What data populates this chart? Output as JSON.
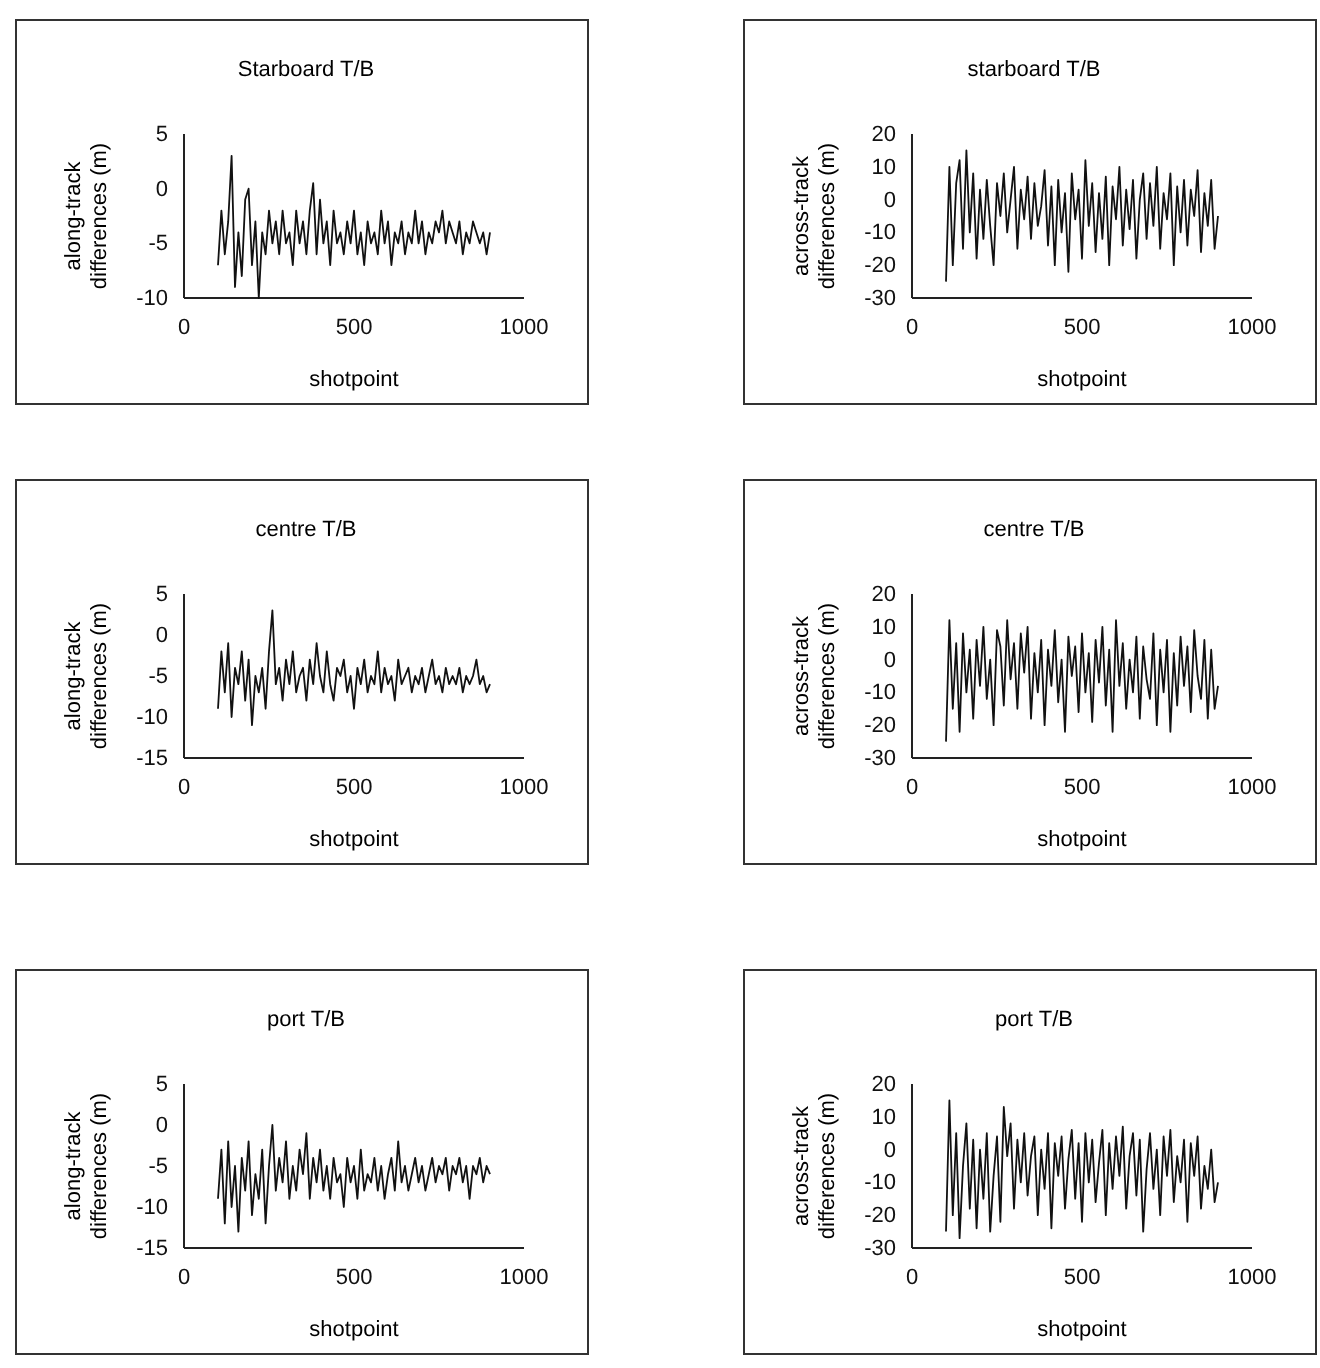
{
  "chart_data": [
    {
      "type": "line",
      "title": "Starboard T/B",
      "xlabel": "shotpoint",
      "ylabel": "along-track differences (m)",
      "color": "#111111",
      "xlim": [
        0,
        1000
      ],
      "xticks": [
        0,
        500,
        1000
      ],
      "ylim": [
        -10,
        5
      ],
      "yticks": [
        -10,
        -5,
        0,
        5
      ],
      "x": [
        100,
        110,
        120,
        130,
        140,
        150,
        160,
        170,
        180,
        190,
        200,
        210,
        220,
        230,
        240,
        250,
        260,
        270,
        280,
        290,
        300,
        310,
        320,
        330,
        340,
        350,
        360,
        370,
        380,
        390,
        400,
        410,
        420,
        430,
        440,
        450,
        460,
        470,
        480,
        490,
        500,
        510,
        520,
        530,
        540,
        550,
        560,
        570,
        580,
        590,
        600,
        610,
        620,
        630,
        640,
        650,
        660,
        670,
        680,
        690,
        700,
        710,
        720,
        730,
        740,
        750,
        760,
        770,
        780,
        790,
        800,
        810,
        820,
        830,
        840,
        850,
        860,
        870,
        880,
        890,
        900
      ],
      "values": [
        -7,
        -2,
        -6,
        -3,
        3,
        -9,
        -4,
        -8,
        -1,
        0,
        -7,
        -3,
        -10,
        -4,
        -6,
        -2,
        -5,
        -3,
        -6,
        -2,
        -5,
        -4,
        -7,
        -2,
        -5,
        -3,
        -6,
        -2,
        0.5,
        -6,
        -1,
        -5,
        -3,
        -7,
        -2,
        -5,
        -4,
        -6,
        -3,
        -5,
        -2,
        -6,
        -4,
        -7,
        -3,
        -5,
        -4,
        -6,
        -2,
        -5,
        -3,
        -7,
        -4,
        -5,
        -3,
        -6,
        -4,
        -5,
        -2,
        -5,
        -3,
        -6,
        -4,
        -5,
        -3,
        -4,
        -2,
        -5,
        -3,
        -4,
        -5,
        -3,
        -6,
        -4,
        -5,
        -3,
        -4,
        -5,
        -4,
        -6,
        -4
      ]
    },
    {
      "type": "line",
      "title": "starboard T/B",
      "xlabel": "shotpoint",
      "ylabel": "across-track differences (m)",
      "color": "#111111",
      "xlim": [
        0,
        1000
      ],
      "xticks": [
        0,
        500,
        1000
      ],
      "ylim": [
        -30,
        20
      ],
      "yticks": [
        -30,
        -20,
        -10,
        0,
        10,
        20
      ],
      "x": [
        100,
        110,
        120,
        130,
        140,
        150,
        160,
        170,
        180,
        190,
        200,
        210,
        220,
        230,
        240,
        250,
        260,
        270,
        280,
        290,
        300,
        310,
        320,
        330,
        340,
        350,
        360,
        370,
        380,
        390,
        400,
        410,
        420,
        430,
        440,
        450,
        460,
        470,
        480,
        490,
        500,
        510,
        520,
        530,
        540,
        550,
        560,
        570,
        580,
        590,
        600,
        610,
        620,
        630,
        640,
        650,
        660,
        670,
        680,
        690,
        700,
        710,
        720,
        730,
        740,
        750,
        760,
        770,
        780,
        790,
        800,
        810,
        820,
        830,
        840,
        850,
        860,
        870,
        880,
        890,
        900
      ],
      "values": [
        -25,
        10,
        -20,
        5,
        12,
        -15,
        15,
        -10,
        8,
        -18,
        3,
        -12,
        6,
        -8,
        -20,
        5,
        -5,
        8,
        -10,
        0,
        10,
        -15,
        3,
        -6,
        7,
        -12,
        5,
        -8,
        -2,
        9,
        -14,
        4,
        -20,
        6,
        -10,
        2,
        -22,
        8,
        -6,
        3,
        -18,
        12,
        -8,
        5,
        -16,
        2,
        -12,
        7,
        -20,
        4,
        -6,
        10,
        -14,
        3,
        -9,
        6,
        -18,
        0,
        8,
        -12,
        5,
        -8,
        10,
        -15,
        2,
        -6,
        8,
        -20,
        4,
        -10,
        6,
        -14,
        3,
        -5,
        9,
        -16,
        2,
        -8,
        6,
        -15,
        -5
      ]
    },
    {
      "type": "line",
      "title": "centre T/B",
      "xlabel": "shotpoint",
      "ylabel": "along-track differences (m)",
      "color": "#111111",
      "xlim": [
        0,
        1000
      ],
      "xticks": [
        0,
        500,
        1000
      ],
      "ylim": [
        -15,
        5
      ],
      "yticks": [
        -15,
        -10,
        -5,
        0,
        5
      ],
      "x": [
        100,
        110,
        120,
        130,
        140,
        150,
        160,
        170,
        180,
        190,
        200,
        210,
        220,
        230,
        240,
        250,
        260,
        270,
        280,
        290,
        300,
        310,
        320,
        330,
        340,
        350,
        360,
        370,
        380,
        390,
        400,
        410,
        420,
        430,
        440,
        450,
        460,
        470,
        480,
        490,
        500,
        510,
        520,
        530,
        540,
        550,
        560,
        570,
        580,
        590,
        600,
        610,
        620,
        630,
        640,
        650,
        660,
        670,
        680,
        690,
        700,
        710,
        720,
        730,
        740,
        750,
        760,
        770,
        780,
        790,
        800,
        810,
        820,
        830,
        840,
        850,
        860,
        870,
        880,
        890,
        900
      ],
      "values": [
        -9,
        -2,
        -7,
        -1,
        -10,
        -4,
        -6,
        -2,
        -8,
        -3,
        -11,
        -5,
        -7,
        -4,
        -9,
        -2,
        3,
        -6,
        -4,
        -8,
        -3,
        -6,
        -2,
        -7,
        -5,
        -4,
        -8,
        -3,
        -6,
        -1,
        -5,
        -7,
        -2,
        -6,
        -8,
        -4,
        -5,
        -3,
        -7,
        -5,
        -9,
        -4,
        -6,
        -3,
        -7,
        -5,
        -6,
        -2,
        -7,
        -4,
        -6,
        -5,
        -8,
        -3,
        -6,
        -5,
        -4,
        -7,
        -5,
        -6,
        -4,
        -7,
        -5,
        -3,
        -6,
        -5,
        -7,
        -4,
        -6,
        -5,
        -6,
        -4,
        -7,
        -5,
        -6,
        -5,
        -3,
        -6,
        -5,
        -7,
        -6
      ]
    },
    {
      "type": "line",
      "title": "centre T/B",
      "xlabel": "shotpoint",
      "ylabel": "across-track differences (m)",
      "color": "#111111",
      "xlim": [
        0,
        1000
      ],
      "xticks": [
        0,
        500,
        1000
      ],
      "ylim": [
        -30,
        20
      ],
      "yticks": [
        -30,
        -20,
        -10,
        0,
        10,
        20
      ],
      "x": [
        100,
        110,
        120,
        130,
        140,
        150,
        160,
        170,
        180,
        190,
        200,
        210,
        220,
        230,
        240,
        250,
        260,
        270,
        280,
        290,
        300,
        310,
        320,
        330,
        340,
        350,
        360,
        370,
        380,
        390,
        400,
        410,
        420,
        430,
        440,
        450,
        460,
        470,
        480,
        490,
        500,
        510,
        520,
        530,
        540,
        550,
        560,
        570,
        580,
        590,
        600,
        610,
        620,
        630,
        640,
        650,
        660,
        670,
        680,
        690,
        700,
        710,
        720,
        730,
        740,
        750,
        760,
        770,
        780,
        790,
        800,
        810,
        820,
        830,
        840,
        850,
        860,
        870,
        880,
        890,
        900
      ],
      "values": [
        -25,
        12,
        -15,
        5,
        -22,
        8,
        -10,
        3,
        -18,
        6,
        -8,
        10,
        -12,
        0,
        -20,
        9,
        4,
        -14,
        12,
        -6,
        5,
        -15,
        8,
        -4,
        10,
        -18,
        2,
        -10,
        6,
        -20,
        3,
        -8,
        9,
        -13,
        0,
        -22,
        7,
        -5,
        4,
        -16,
        8,
        -10,
        2,
        -19,
        6,
        -7,
        10,
        -14,
        3,
        -22,
        12,
        -8,
        5,
        -15,
        0,
        -10,
        7,
        -18,
        4,
        -6,
        -12,
        8,
        -20,
        3,
        -10,
        6,
        -22,
        2,
        -14,
        7,
        -8,
        4,
        -16,
        9,
        -5,
        -12,
        6,
        -18,
        3,
        -15,
        -8
      ]
    },
    {
      "type": "line",
      "title": "port T/B",
      "xlabel": "shotpoint",
      "ylabel": "along-track differences (m)",
      "color": "#111111",
      "xlim": [
        0,
        1000
      ],
      "xticks": [
        0,
        500,
        1000
      ],
      "ylim": [
        -15,
        5
      ],
      "yticks": [
        -15,
        -10,
        -5,
        0,
        5
      ],
      "x": [
        100,
        110,
        120,
        130,
        140,
        150,
        160,
        170,
        180,
        190,
        200,
        210,
        220,
        230,
        240,
        250,
        260,
        270,
        280,
        290,
        300,
        310,
        320,
        330,
        340,
        350,
        360,
        370,
        380,
        390,
        400,
        410,
        420,
        430,
        440,
        450,
        460,
        470,
        480,
        490,
        500,
        510,
        520,
        530,
        540,
        550,
        560,
        570,
        580,
        590,
        600,
        610,
        620,
        630,
        640,
        650,
        660,
        670,
        680,
        690,
        700,
        710,
        720,
        730,
        740,
        750,
        760,
        770,
        780,
        790,
        800,
        810,
        820,
        830,
        840,
        850,
        860,
        870,
        880,
        890,
        900
      ],
      "values": [
        -9,
        -3,
        -12,
        -2,
        -10,
        -5,
        -13,
        -4,
        -8,
        -2,
        -11,
        -6,
        -9,
        -3,
        -12,
        -5,
        0,
        -8,
        -4,
        -7,
        -2,
        -9,
        -5,
        -8,
        -3,
        -6,
        -1,
        -9,
        -4,
        -7,
        -3,
        -8,
        -5,
        -9,
        -4,
        -7,
        -6,
        -10,
        -4,
        -7,
        -5,
        -9,
        -3,
        -8,
        -6,
        -7,
        -4,
        -8,
        -5,
        -9,
        -6,
        -4,
        -8,
        -2,
        -7,
        -5,
        -8,
        -6,
        -4,
        -7,
        -5,
        -8,
        -6,
        -4,
        -7,
        -5,
        -6,
        -4,
        -8,
        -5,
        -6,
        -4,
        -7,
        -5,
        -9,
        -5,
        -6,
        -4,
        -7,
        -5,
        -6
      ]
    },
    {
      "type": "line",
      "title": "port T/B",
      "xlabel": "shotpoint",
      "ylabel": "across-track differences (m)",
      "color": "#111111",
      "xlim": [
        0,
        1000
      ],
      "xticks": [
        0,
        500,
        1000
      ],
      "ylim": [
        -30,
        20
      ],
      "yticks": [
        -30,
        -20,
        -10,
        0,
        10,
        20
      ],
      "x": [
        100,
        110,
        120,
        130,
        140,
        150,
        160,
        170,
        180,
        190,
        200,
        210,
        220,
        230,
        240,
        250,
        260,
        270,
        280,
        290,
        300,
        310,
        320,
        330,
        340,
        350,
        360,
        370,
        380,
        390,
        400,
        410,
        420,
        430,
        440,
        450,
        460,
        470,
        480,
        490,
        500,
        510,
        520,
        530,
        540,
        550,
        560,
        570,
        580,
        590,
        600,
        610,
        620,
        630,
        640,
        650,
        660,
        670,
        680,
        690,
        700,
        710,
        720,
        730,
        740,
        750,
        760,
        770,
        780,
        790,
        800,
        810,
        820,
        830,
        840,
        850,
        860,
        870,
        880,
        890,
        900
      ],
      "values": [
        -25,
        15,
        -20,
        5,
        -27,
        -5,
        8,
        -18,
        3,
        -24,
        0,
        -15,
        5,
        -25,
        -8,
        4,
        -22,
        13,
        -2,
        8,
        -18,
        3,
        -10,
        5,
        -14,
        -2,
        4,
        -20,
        0,
        -12,
        5,
        -24,
        2,
        -8,
        4,
        -18,
        -3,
        6,
        -15,
        2,
        -22,
        5,
        -10,
        3,
        -16,
        -4,
        6,
        -20,
        2,
        -12,
        4,
        -8,
        7,
        -18,
        -2,
        5,
        -14,
        3,
        -25,
        -6,
        5,
        -12,
        0,
        -20,
        4,
        -8,
        6,
        -16,
        -2,
        -10,
        3,
        -22,
        2,
        -8,
        4,
        -18,
        -5,
        -12,
        0,
        -16,
        -10
      ]
    }
  ]
}
